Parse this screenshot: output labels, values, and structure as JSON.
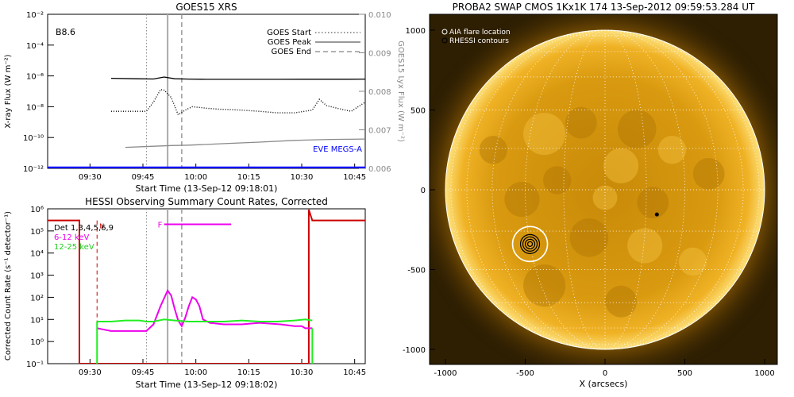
{
  "chart_data": [
    {
      "type": "line",
      "title": "GOES15 XRS",
      "xlabel": "Start Time (13-Sep-12 09:18:01)",
      "ylabel": "X-ray Flux (W m⁻²)",
      "y2label": "GOES15 Lyx Flux (W m⁻²)",
      "y_scale": "log",
      "ylim": [
        1e-12,
        0.01
      ],
      "y2lim": [
        0.006,
        0.01
      ],
      "xlim_minutes": [
        0,
        90
      ],
      "x_ticks": [
        {
          "label": "09:30",
          "minute": 12
        },
        {
          "label": "09:45",
          "minute": 27
        },
        {
          "label": "10:00",
          "minute": 42
        },
        {
          "label": "10:15",
          "minute": 57
        },
        {
          "label": "10:30",
          "minute": 72
        },
        {
          "label": "10:45",
          "minute": 87
        }
      ],
      "y_ticks": [
        "10⁻²",
        "10⁻⁴",
        "10⁻⁶",
        "10⁻⁸",
        "10⁻¹⁰",
        "10⁻¹²"
      ],
      "y2_ticks": [
        "0.010",
        "0.009",
        "0.008",
        "0.007",
        "0.006"
      ],
      "annotation": "B8.6",
      "legend": [
        "GOES Start",
        "GOES Peak",
        "GOES End"
      ],
      "legend_position": "top-right",
      "eve_label": "EVE MEGS-A",
      "markers": {
        "start_minute": 28,
        "peak_minute": 34,
        "end_minute": 38
      },
      "series": [
        {
          "name": "",
          "color": "#000000",
          "style": "solid",
          "x": [
            18,
            25,
            30,
            33,
            36,
            40,
            45,
            55,
            65,
            75,
            85,
            90
          ],
          "y": [
            7e-07,
            6.5e-07,
            6.3e-07,
            8.5e-07,
            6.5e-07,
            6.2e-07,
            6e-07,
            6e-07,
            6e-07,
            6.1e-07,
            6.1e-07,
            6.2e-07
          ]
        },
        {
          "name": "",
          "color": "#000000",
          "style": "dotted",
          "x": [
            18,
            22,
            27,
            28,
            30,
            32,
            33,
            35,
            37,
            39,
            41,
            43,
            45,
            48,
            55,
            60,
            65,
            70,
            75,
            77,
            79,
            82,
            86,
            90
          ],
          "y": [
            5e-09,
            5e-09,
            5e-09,
            5e-09,
            2e-08,
            1.3e-07,
            1.2e-07,
            4e-08,
            3e-09,
            6e-09,
            1e-08,
            9e-09,
            8e-09,
            7e-09,
            6e-09,
            5e-09,
            4e-09,
            4e-09,
            6e-09,
            3e-08,
            1.2e-08,
            8e-09,
            5e-09,
            2e-08
          ]
        },
        {
          "name": "",
          "color": "#8a8a8a",
          "style": "solid",
          "x": [
            22,
            30,
            35,
            40,
            50,
            60,
            70,
            80,
            90
          ],
          "y": [
            2.3e-11,
            2.7e-11,
            3e-11,
            3.2e-11,
            4e-11,
            5e-11,
            6.5e-11,
            7.5e-11,
            8e-11
          ]
        },
        {
          "name": "EVE MEGS-A",
          "color": "#0000ff",
          "style": "solid",
          "x": [
            0,
            90
          ],
          "y": [
            1.1e-12,
            1.1e-12
          ]
        }
      ]
    },
    {
      "type": "line",
      "title": "HESSI Observing Summary Count Rates, Corrected",
      "xlabel": "Start Time (13-Sep-12 09:18:02)",
      "ylabel": "Corrected Count Rate (s⁻¹ detector⁻¹)",
      "y_scale": "log",
      "ylim": [
        0.1,
        1000000
      ],
      "xlim_minutes": [
        0,
        90
      ],
      "x_ticks": [
        {
          "label": "09:30",
          "minute": 12
        },
        {
          "label": "09:45",
          "minute": 27
        },
        {
          "label": "10:00",
          "minute": 42
        },
        {
          "label": "10:15",
          "minute": 57
        },
        {
          "label": "10:30",
          "minute": 72
        },
        {
          "label": "10:45",
          "minute": 87
        }
      ],
      "y_ticks": [
        "10⁶",
        "10⁵",
        "10⁴",
        "10³",
        "10²",
        "10¹",
        "10⁰",
        "10⁻¹"
      ],
      "legend": [
        "Det 1,3,4,5,6,9",
        "6-12 keV",
        "12-25 keV"
      ],
      "legend_position": "top-left",
      "night_label": "N",
      "flare_flag_label": "F",
      "flare_flag": {
        "from_minute": 33,
        "to_minute": 52,
        "y": 200000
      },
      "markers": {
        "start_minute": 28,
        "peak_minute": 34,
        "end_minute": 38,
        "night_minute": 14
      },
      "series": [
        {
          "name": "6-12 keV",
          "color": "#ee00ee",
          "x": [
            14,
            18,
            22,
            25,
            28,
            30,
            32,
            34,
            35,
            36,
            37,
            38,
            39,
            40,
            41,
            42,
            43,
            44,
            46,
            50,
            55,
            60,
            66,
            70,
            72,
            73,
            75
          ],
          "y": [
            4,
            3,
            3,
            3,
            3,
            6,
            40,
            200,
            120,
            30,
            9,
            5,
            12,
            40,
            100,
            80,
            40,
            10,
            7,
            6,
            6,
            7,
            6,
            5,
            5,
            4,
            4
          ]
        },
        {
          "name": "12-25 keV",
          "color": "#22ee22",
          "x": [
            14,
            18,
            22,
            26,
            28,
            30,
            33,
            36,
            40,
            45,
            50,
            55,
            60,
            65,
            70,
            73,
            75
          ],
          "y": [
            8,
            8,
            9,
            9,
            8,
            8,
            10,
            9,
            8,
            8,
            8,
            9,
            8,
            8,
            9,
            10,
            9
          ]
        }
      ]
    },
    {
      "type": "heatmap",
      "title": "PROBA2 SWAP CMOS 1Kx1K 174 13-Sep-2012 09:59:53.284 UT",
      "xlabel": "X (arcsecs)",
      "ylabel": "",
      "xlim": [
        -1100,
        1100
      ],
      "ylim": [
        -1100,
        1100
      ],
      "x_ticks": [
        "-1000",
        "-500",
        "0",
        "500",
        "1000"
      ],
      "y_ticks": [
        "1000",
        "500",
        "0",
        "-500",
        "-1000"
      ],
      "legend": [
        "AIA flare location",
        "RHESSI contours"
      ],
      "legend_position": "top-left",
      "flare_location": {
        "x": -470,
        "y": -340
      },
      "small_marker": {
        "x": 325,
        "y": -155
      }
    }
  ]
}
